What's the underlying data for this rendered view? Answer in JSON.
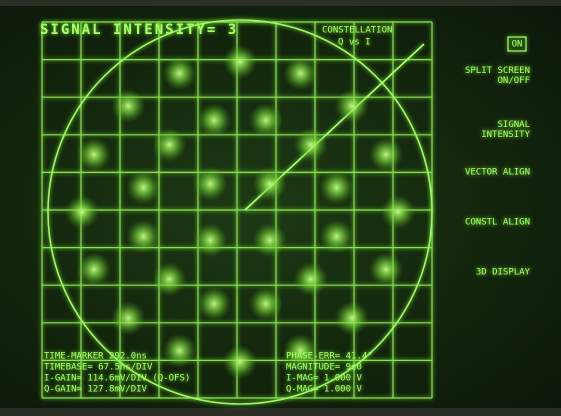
{
  "header": {
    "title": "SIGNAL INTENSITY= 3",
    "mode": "CONSTELLATION",
    "mode_detail": "Q vs I"
  },
  "softkeys": [
    {
      "label": "ON",
      "boxed": true
    },
    {
      "label": "SPLIT SCREEN ON/OFF"
    },
    {
      "label": "SIGNAL INTENSITY"
    },
    {
      "label": "VECTOR ALIGN"
    },
    {
      "label": "CONSTL ALIGN"
    },
    {
      "label": "3D DISPLAY"
    }
  ],
  "status": {
    "left": [
      "TIME-MARKER 292.0ns",
      "TIMEBASE= 67.5ns/DIV",
      "I-GAIN= 114.6mV/DIV (Q-OFS)",
      "Q-GAIN= 127.8mV/DIV"
    ],
    "right": [
      "PHASE-ERR= 41.4°",
      "MAGNITUDE= 9e0",
      "I-MAG= 1.000 V",
      "Q-MAG= 1.000 V"
    ]
  }
}
